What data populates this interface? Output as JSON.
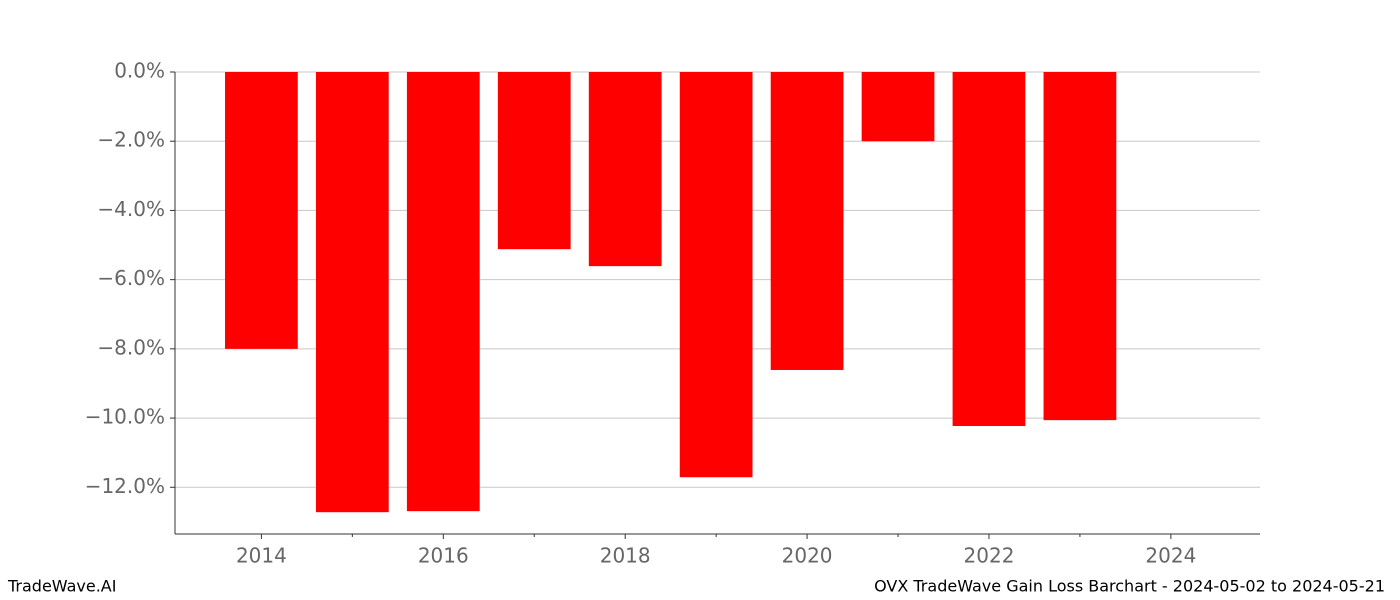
{
  "chart_data": {
    "type": "bar",
    "title": "OVX TradeWave Gain Loss Barchart - 2024-05-02 to 2024-05-21",
    "watermark": "TradeWave.AI",
    "x": [
      2014,
      2015,
      2016,
      2017,
      2018,
      2019,
      2020,
      2021,
      2022,
      2023
    ],
    "values": [
      -8.0,
      -12.72,
      -12.69,
      -5.12,
      -5.61,
      -11.71,
      -8.61,
      -2.0,
      -10.23,
      -10.06
    ],
    "color": "#ff0000",
    "xlim": [
      2013.05,
      2024.98
    ],
    "xticks": [
      2014,
      2016,
      2018,
      2020,
      2022,
      2024
    ],
    "xminorticks": [
      2015,
      2017,
      2019,
      2021,
      2023
    ],
    "ylim": [
      -13.35,
      0
    ],
    "yticks": [
      {
        "value": 0,
        "label": "0.0%"
      },
      {
        "value": -2,
        "label": "−2.0%"
      },
      {
        "value": -4,
        "label": "−4.0%"
      },
      {
        "value": -6,
        "label": "−6.0%"
      },
      {
        "value": -8,
        "label": "−8.0%"
      },
      {
        "value": -10,
        "label": "−10.0%"
      },
      {
        "value": -12,
        "label": "−12.0%"
      }
    ],
    "grid": true
  }
}
